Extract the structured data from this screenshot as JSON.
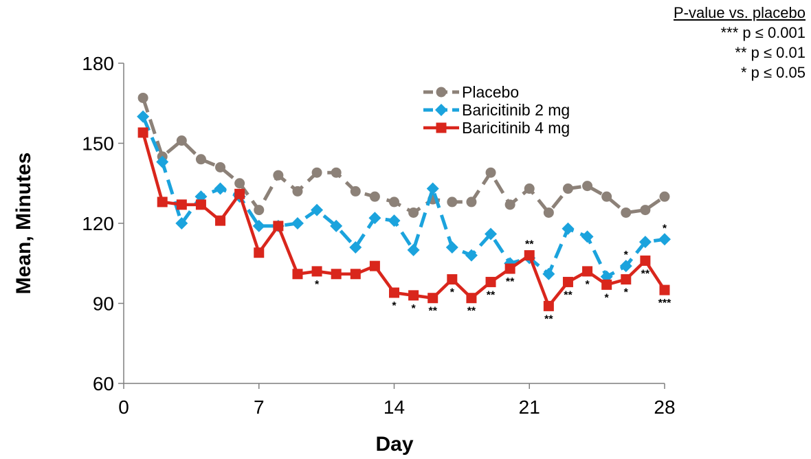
{
  "chart_data": {
    "type": "line",
    "xlabel": "Day",
    "ylabel": "Mean, Minutes",
    "xlim": [
      0,
      28
    ],
    "ylim": [
      60,
      180
    ],
    "xticks": [
      0,
      7,
      14,
      21,
      28
    ],
    "yticks": [
      60,
      90,
      120,
      150,
      180
    ],
    "grid": false,
    "legend_position": "top-center",
    "series": [
      {
        "name": "Placebo",
        "color": "#8c8178",
        "marker": "circle",
        "line_style": "dashed",
        "x": [
          1,
          2,
          3,
          4,
          5,
          6,
          7,
          8,
          9,
          10,
          11,
          12,
          13,
          14,
          15,
          16,
          17,
          18,
          19,
          20,
          21,
          22,
          23,
          24,
          25,
          26,
          27,
          28
        ],
        "y": [
          167,
          145,
          151,
          144,
          141,
          135,
          125,
          138,
          132,
          139,
          139,
          132,
          130,
          128,
          124,
          129,
          128,
          128,
          139,
          127,
          133,
          124,
          133,
          134,
          130,
          124,
          125,
          130
        ]
      },
      {
        "name": "Baricitinib 2 mg",
        "color": "#1ba3dd",
        "marker": "diamond",
        "line_style": "dashed",
        "x": [
          1,
          2,
          3,
          4,
          5,
          6,
          7,
          8,
          9,
          10,
          11,
          12,
          13,
          14,
          15,
          16,
          17,
          18,
          19,
          20,
          21,
          22,
          23,
          24,
          25,
          26,
          27,
          28
        ],
        "y": [
          160,
          143,
          120,
          130,
          133,
          130,
          119,
          119,
          120,
          125,
          119,
          111,
          122,
          121,
          110,
          133,
          111,
          108,
          116,
          105,
          107,
          101,
          118,
          115,
          100,
          104,
          113,
          114
        ]
      },
      {
        "name": "Baricitinib 4 mg",
        "color": "#d9261c",
        "marker": "square",
        "line_style": "solid",
        "x": [
          1,
          2,
          3,
          4,
          5,
          6,
          7,
          8,
          9,
          10,
          11,
          12,
          13,
          14,
          15,
          16,
          17,
          18,
          19,
          20,
          21,
          22,
          23,
          24,
          25,
          26,
          27,
          28
        ],
        "y": [
          154,
          128,
          127,
          127,
          121,
          131,
          109,
          119,
          101,
          102,
          101,
          101,
          104,
          94,
          93,
          92,
          99,
          92,
          98,
          103,
          108,
          89,
          98,
          102,
          97,
          99,
          106,
          95
        ]
      }
    ],
    "annotations": [
      {
        "x": 10,
        "y": 102,
        "text": "*",
        "pos": "below"
      },
      {
        "x": 14,
        "y": 94,
        "text": "*",
        "pos": "below"
      },
      {
        "x": 15,
        "y": 93,
        "text": "*",
        "pos": "below"
      },
      {
        "x": 16,
        "y": 92,
        "text": "**",
        "pos": "below"
      },
      {
        "x": 17,
        "y": 99,
        "text": "*",
        "pos": "below"
      },
      {
        "x": 18,
        "y": 92,
        "text": "**",
        "pos": "below"
      },
      {
        "x": 19,
        "y": 98,
        "text": "**",
        "pos": "below"
      },
      {
        "x": 20,
        "y": 103,
        "text": "**",
        "pos": "below"
      },
      {
        "x": 21,
        "y": 108,
        "text": "**",
        "pos": "above"
      },
      {
        "x": 22,
        "y": 89,
        "text": "**",
        "pos": "below"
      },
      {
        "x": 23,
        "y": 98,
        "text": "**",
        "pos": "below"
      },
      {
        "x": 24,
        "y": 102,
        "text": "*",
        "pos": "below"
      },
      {
        "x": 25,
        "y": 97,
        "text": "*",
        "pos": "below"
      },
      {
        "x": 26,
        "y": 104,
        "text": "*",
        "pos": "above"
      },
      {
        "x": 26,
        "y": 99,
        "text": "*",
        "pos": "below"
      },
      {
        "x": 27,
        "y": 106,
        "text": "**",
        "pos": "below"
      },
      {
        "x": 28,
        "y": 114,
        "text": "*",
        "pos": "above"
      },
      {
        "x": 28,
        "y": 95,
        "text": "***",
        "pos": "below"
      }
    ]
  },
  "pvalue_box": {
    "title": "P-value vs. placebo",
    "lines": [
      "*** p ≤ 0.001",
      "** p ≤ 0.01",
      "* p ≤ 0.05"
    ]
  }
}
